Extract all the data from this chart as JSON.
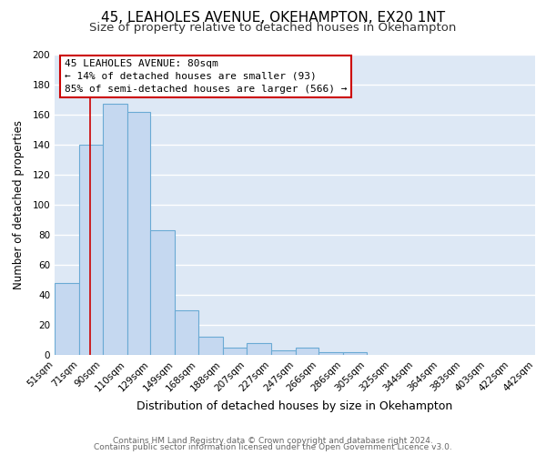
{
  "title": "45, LEAHOLES AVENUE, OKEHAMPTON, EX20 1NT",
  "subtitle": "Size of property relative to detached houses in Okehampton",
  "xlabel": "Distribution of detached houses by size in Okehampton",
  "ylabel": "Number of detached properties",
  "bar_values": [
    48,
    140,
    167,
    162,
    83,
    30,
    12,
    5,
    8,
    3,
    5,
    2,
    2,
    0,
    0,
    0,
    0,
    0,
    0,
    0
  ],
  "bin_edges": [
    51,
    71,
    90,
    110,
    129,
    149,
    168,
    188,
    207,
    227,
    247,
    266,
    286,
    305,
    325,
    344,
    364,
    383,
    403,
    422,
    442
  ],
  "bar_labels": [
    "51sqm",
    "71sqm",
    "90sqm",
    "110sqm",
    "129sqm",
    "149sqm",
    "168sqm",
    "188sqm",
    "207sqm",
    "227sqm",
    "247sqm",
    "266sqm",
    "286sqm",
    "305sqm",
    "325sqm",
    "344sqm",
    "364sqm",
    "383sqm",
    "403sqm",
    "422sqm",
    "442sqm"
  ],
  "bar_color": "#c5d8f0",
  "bar_edge_color": "#6aaad4",
  "figure_bg": "#ffffff",
  "axes_bg": "#dde8f5",
  "grid_color": "#ffffff",
  "vline_x": 80,
  "vline_color": "#cc0000",
  "annotation_line1": "45 LEAHOLES AVENUE: 80sqm",
  "annotation_line2": "← 14% of detached houses are smaller (93)",
  "annotation_line3": "85% of semi-detached houses are larger (566) →",
  "annotation_fontsize": 8.0,
  "title_fontsize": 11,
  "subtitle_fontsize": 9.5,
  "xlabel_fontsize": 9,
  "ylabel_fontsize": 8.5,
  "tick_fontsize": 7.5,
  "ylim": [
    0,
    200
  ],
  "yticks": [
    0,
    20,
    40,
    60,
    80,
    100,
    120,
    140,
    160,
    180,
    200
  ],
  "footer_line1": "Contains HM Land Registry data © Crown copyright and database right 2024.",
  "footer_line2": "Contains public sector information licensed under the Open Government Licence v3.0.",
  "footer_fontsize": 6.5
}
